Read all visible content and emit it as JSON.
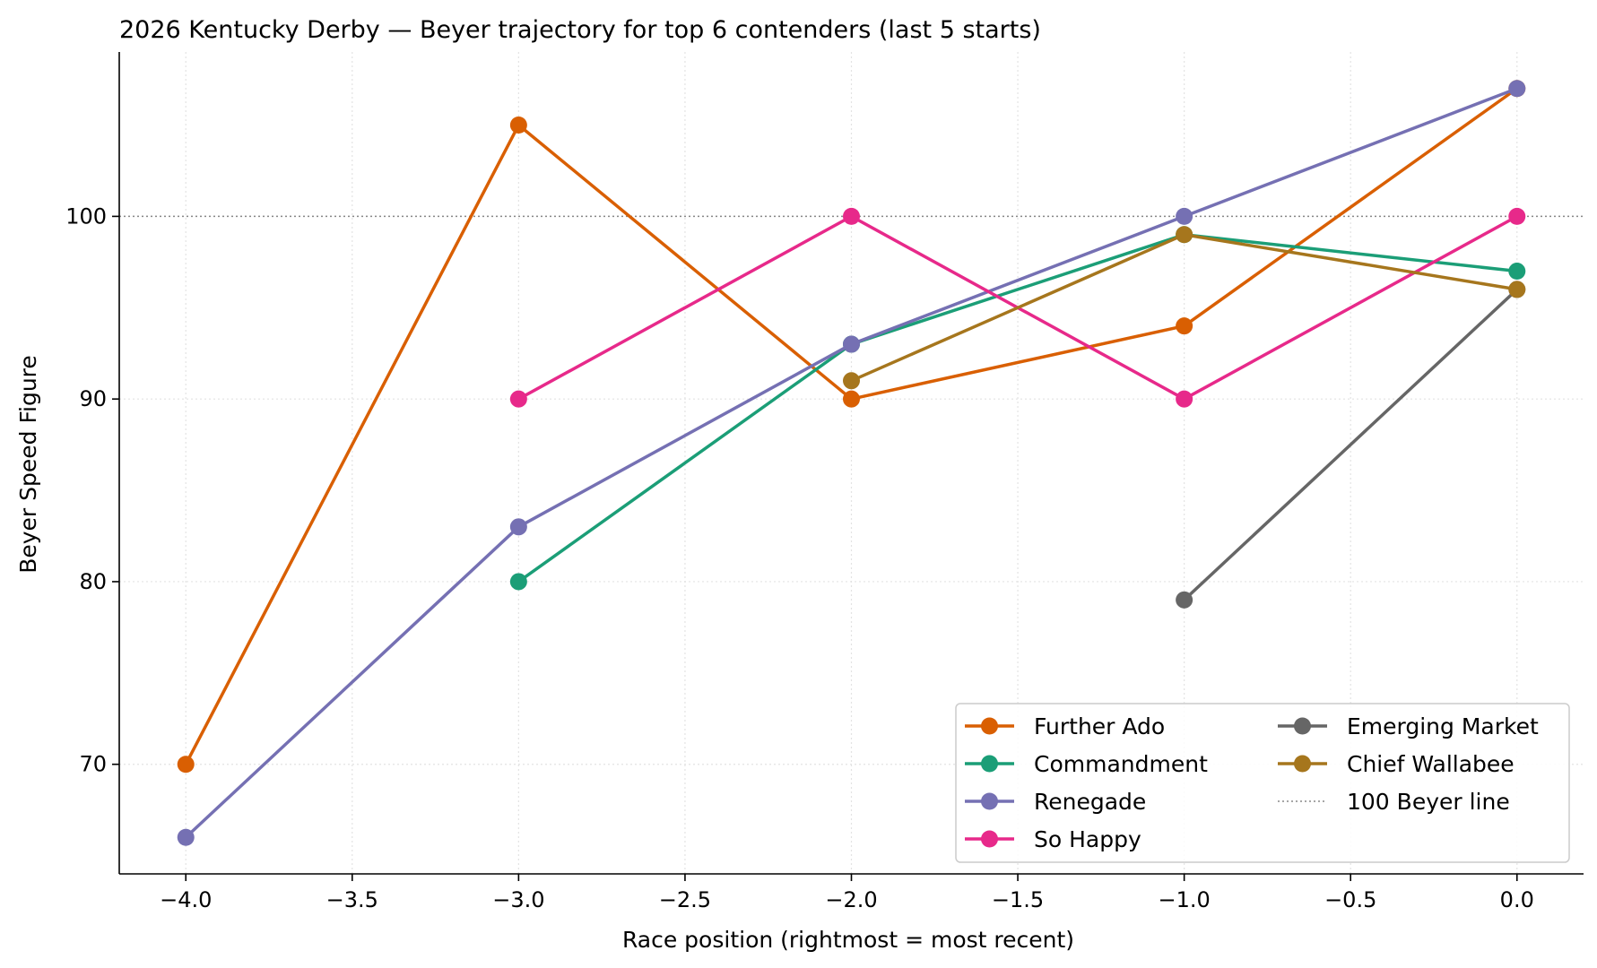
{
  "chart_data": {
    "type": "line",
    "title": "2026 Kentucky Derby — Beyer trajectory for top 6 contenders (last 5 starts)",
    "xlabel": "Race position (rightmost = most recent)",
    "ylabel": "Beyer Speed Figure",
    "xlim": [
      -4.2,
      0.2
    ],
    "ylim": [
      64,
      109
    ],
    "xticks": [
      -4.0,
      -3.5,
      -3.0,
      -2.5,
      -2.0,
      -1.5,
      -1.0,
      -0.5,
      0.0
    ],
    "xtick_labels": [
      "−4.0",
      "−3.5",
      "−3.0",
      "−2.5",
      "−2.0",
      "−1.5",
      "−1.0",
      "−0.5",
      "0.0"
    ],
    "yticks": [
      70,
      80,
      90,
      100
    ],
    "ytick_labels": [
      "70",
      "80",
      "90",
      "100"
    ],
    "grid": true,
    "legend_position": "lower-right",
    "reference_line": {
      "y": 100,
      "label": "100 Beyer line",
      "color": "#888888"
    },
    "series": [
      {
        "name": "Further Ado",
        "color": "#d95f02",
        "x": [
          -4,
          -3,
          -2,
          -1,
          0
        ],
        "y": [
          70,
          105,
          90,
          94,
          107
        ]
      },
      {
        "name": "Commandment",
        "color": "#1b9e77",
        "x": [
          -3,
          -2,
          -1,
          0
        ],
        "y": [
          80,
          93,
          99,
          97
        ]
      },
      {
        "name": "Renegade",
        "color": "#7570b3",
        "x": [
          -4,
          -3,
          -2,
          -1,
          0
        ],
        "y": [
          66,
          83,
          93,
          100,
          107
        ]
      },
      {
        "name": "So Happy",
        "color": "#e7298a",
        "x": [
          -3,
          -2,
          -1,
          0
        ],
        "y": [
          90,
          100,
          90,
          100
        ]
      },
      {
        "name": "Emerging Market",
        "color": "#666666",
        "x": [
          -1,
          0
        ],
        "y": [
          79,
          96
        ]
      },
      {
        "name": "Chief Wallabee",
        "color": "#a6761d",
        "x": [
          -2,
          -1,
          0
        ],
        "y": [
          91,
          99,
          96
        ]
      }
    ]
  }
}
